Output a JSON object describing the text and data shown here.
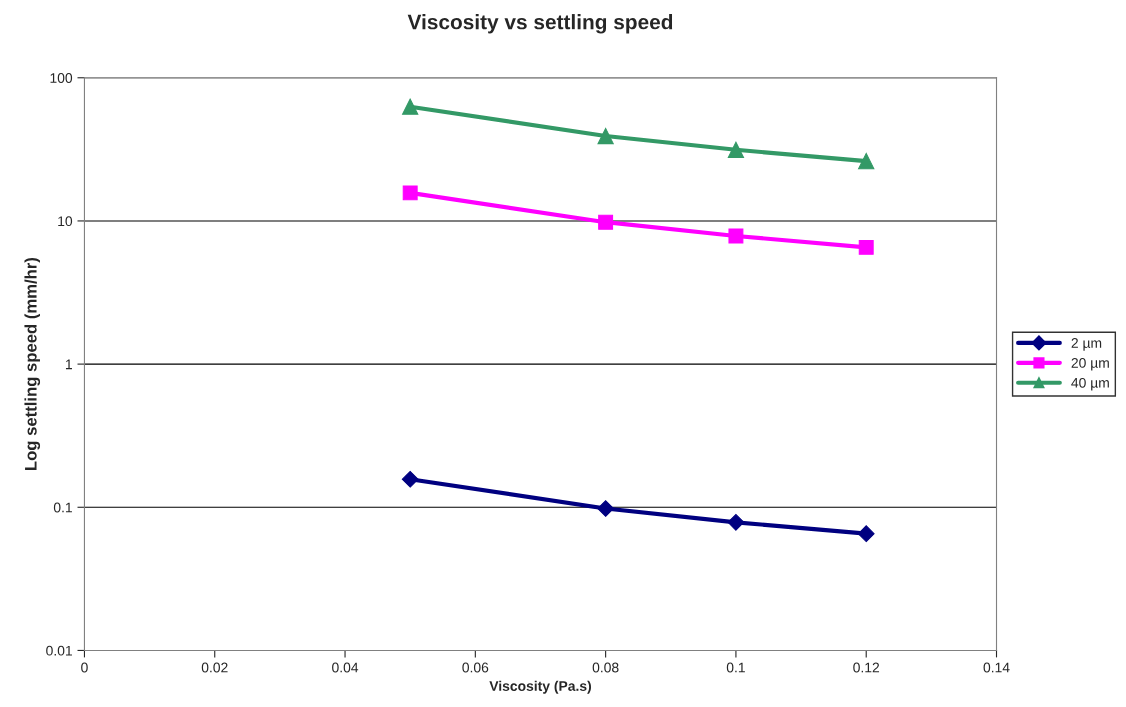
{
  "chart_data": {
    "type": "line",
    "title": "Viscosity vs settling speed",
    "xlabel": "Viscosity (Pa.s)",
    "ylabel": "Log settling speed (mm/hr)",
    "x": [
      0.05,
      0.08,
      0.1,
      0.12
    ],
    "series": [
      {
        "name": "2 µm",
        "color": "#000080",
        "marker": "diamond",
        "values": [
          0.157,
          0.098,
          0.0785,
          0.0654
        ]
      },
      {
        "name": "20 µm",
        "color": "#ff00ff",
        "marker": "square",
        "values": [
          15.7,
          9.8,
          7.85,
          6.54
        ]
      },
      {
        "name": "40 µm",
        "color": "#339966",
        "marker": "triangle",
        "values": [
          62.8,
          39.2,
          31.4,
          26.2
        ]
      }
    ],
    "log": "y",
    "xlim": [
      0,
      0.14
    ],
    "xticks": [
      0,
      0.02,
      0.04,
      0.06,
      0.08,
      0.1,
      0.12,
      0.14
    ],
    "ylim": [
      0.01,
      100
    ],
    "yticks": [
      0.01,
      0.1,
      1,
      10,
      100
    ],
    "grid": "y",
    "legend": "right",
    "line_style": "solid"
  }
}
